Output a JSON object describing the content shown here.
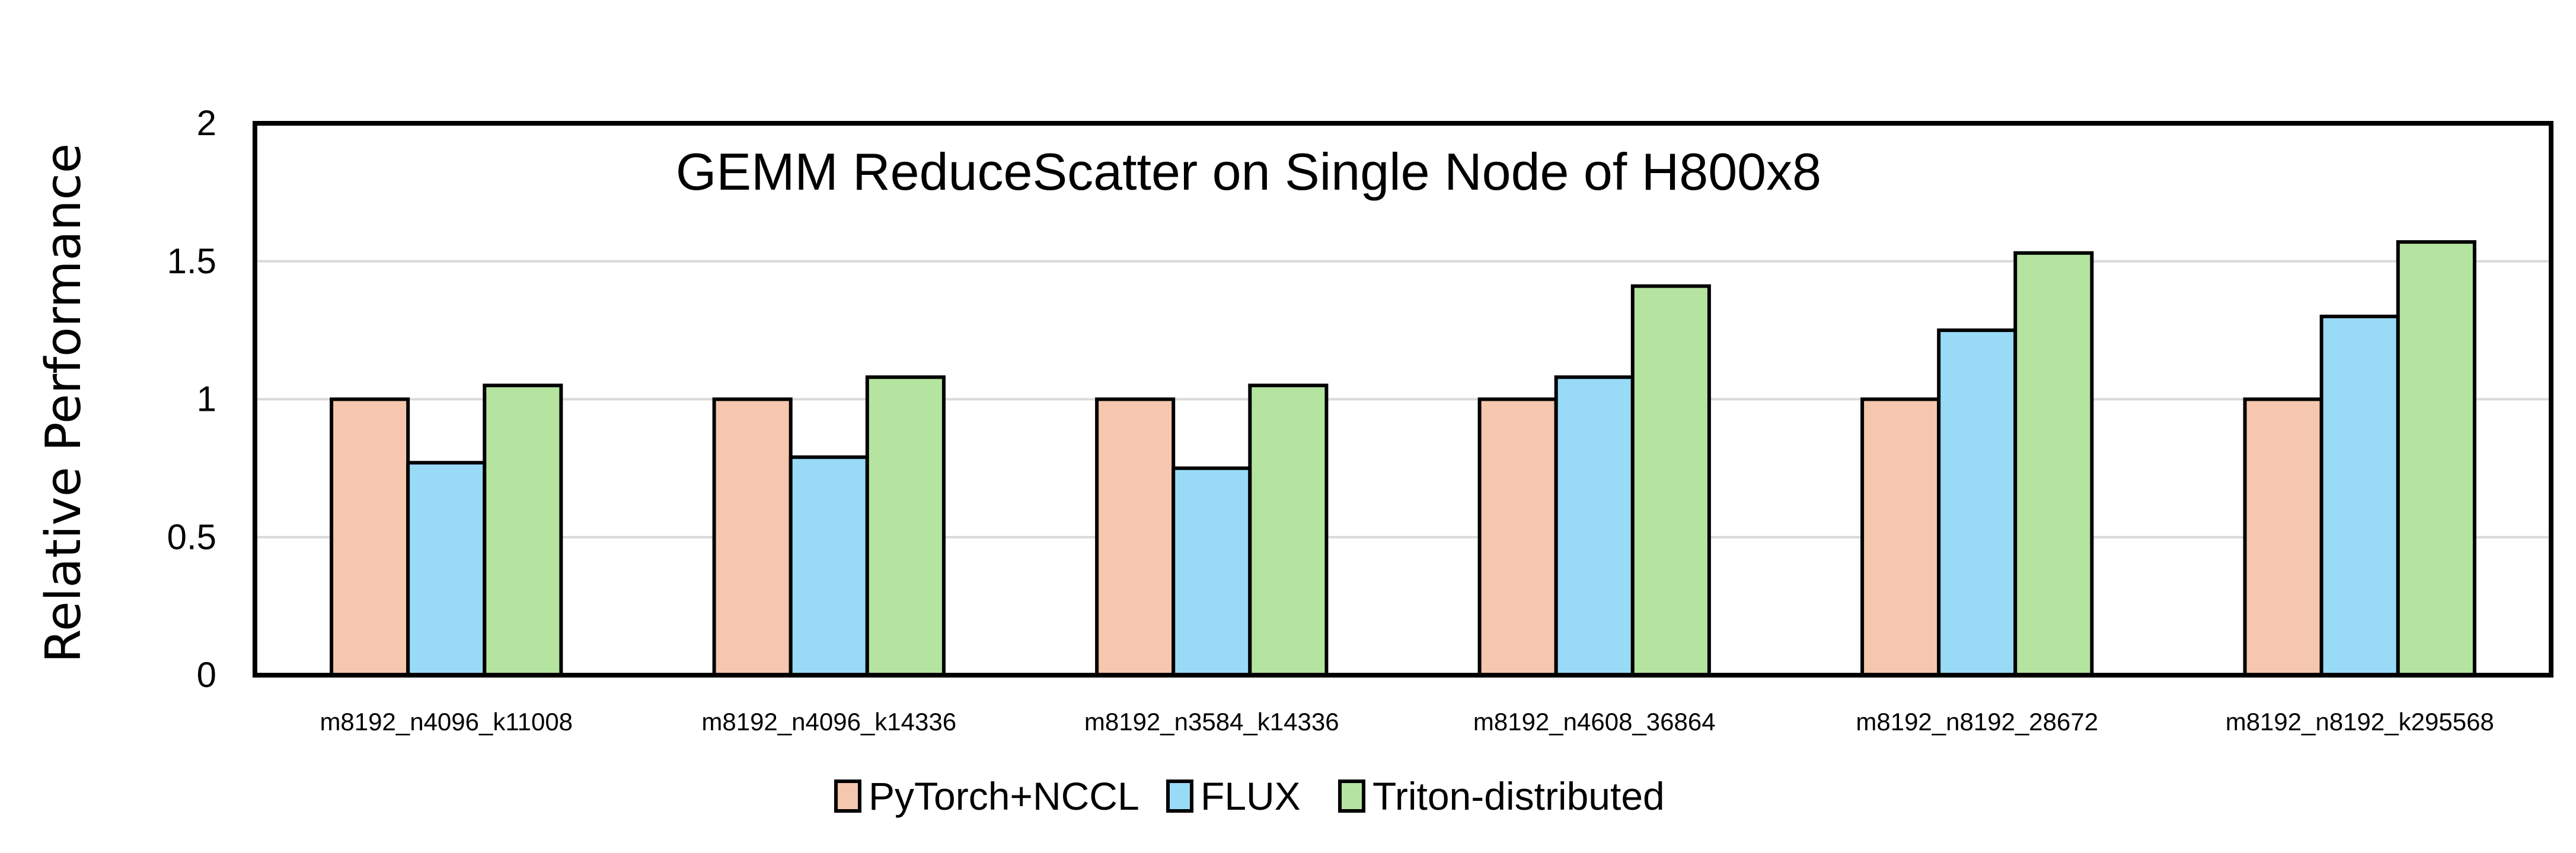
{
  "chart_data": {
    "type": "bar",
    "title": "GEMM ReduceScatter on Single Node of H800x8",
    "xlabel": "",
    "ylabel": "Relative Performance",
    "ylim": [
      0,
      2
    ],
    "yticks": [
      "0",
      "0.5",
      "1",
      "1.5",
      "2"
    ],
    "grid": true,
    "legend_position": "bottom",
    "categories": [
      "m8192_n4096_k11008",
      "m8192_n4096_k14336",
      "m8192_n3584_k14336",
      "m8192_n4608_36864",
      "m8192_n8192_28672",
      "m8192_n8192_k295568"
    ],
    "series": [
      {
        "name": "PyTorch+NCCL",
        "color": "#F5C7AE",
        "values": [
          1,
          1,
          1,
          1,
          1,
          1
        ]
      },
      {
        "name": "FLUX",
        "color": "#99DBF7",
        "values": [
          0.77,
          0.79,
          0.75,
          1.08,
          1.25,
          1.3
        ]
      },
      {
        "name": "Triton-distributed",
        "color": "#B5E4A1",
        "values": [
          1.05,
          1.08,
          1.05,
          1.41,
          1.53,
          1.57
        ]
      }
    ]
  }
}
